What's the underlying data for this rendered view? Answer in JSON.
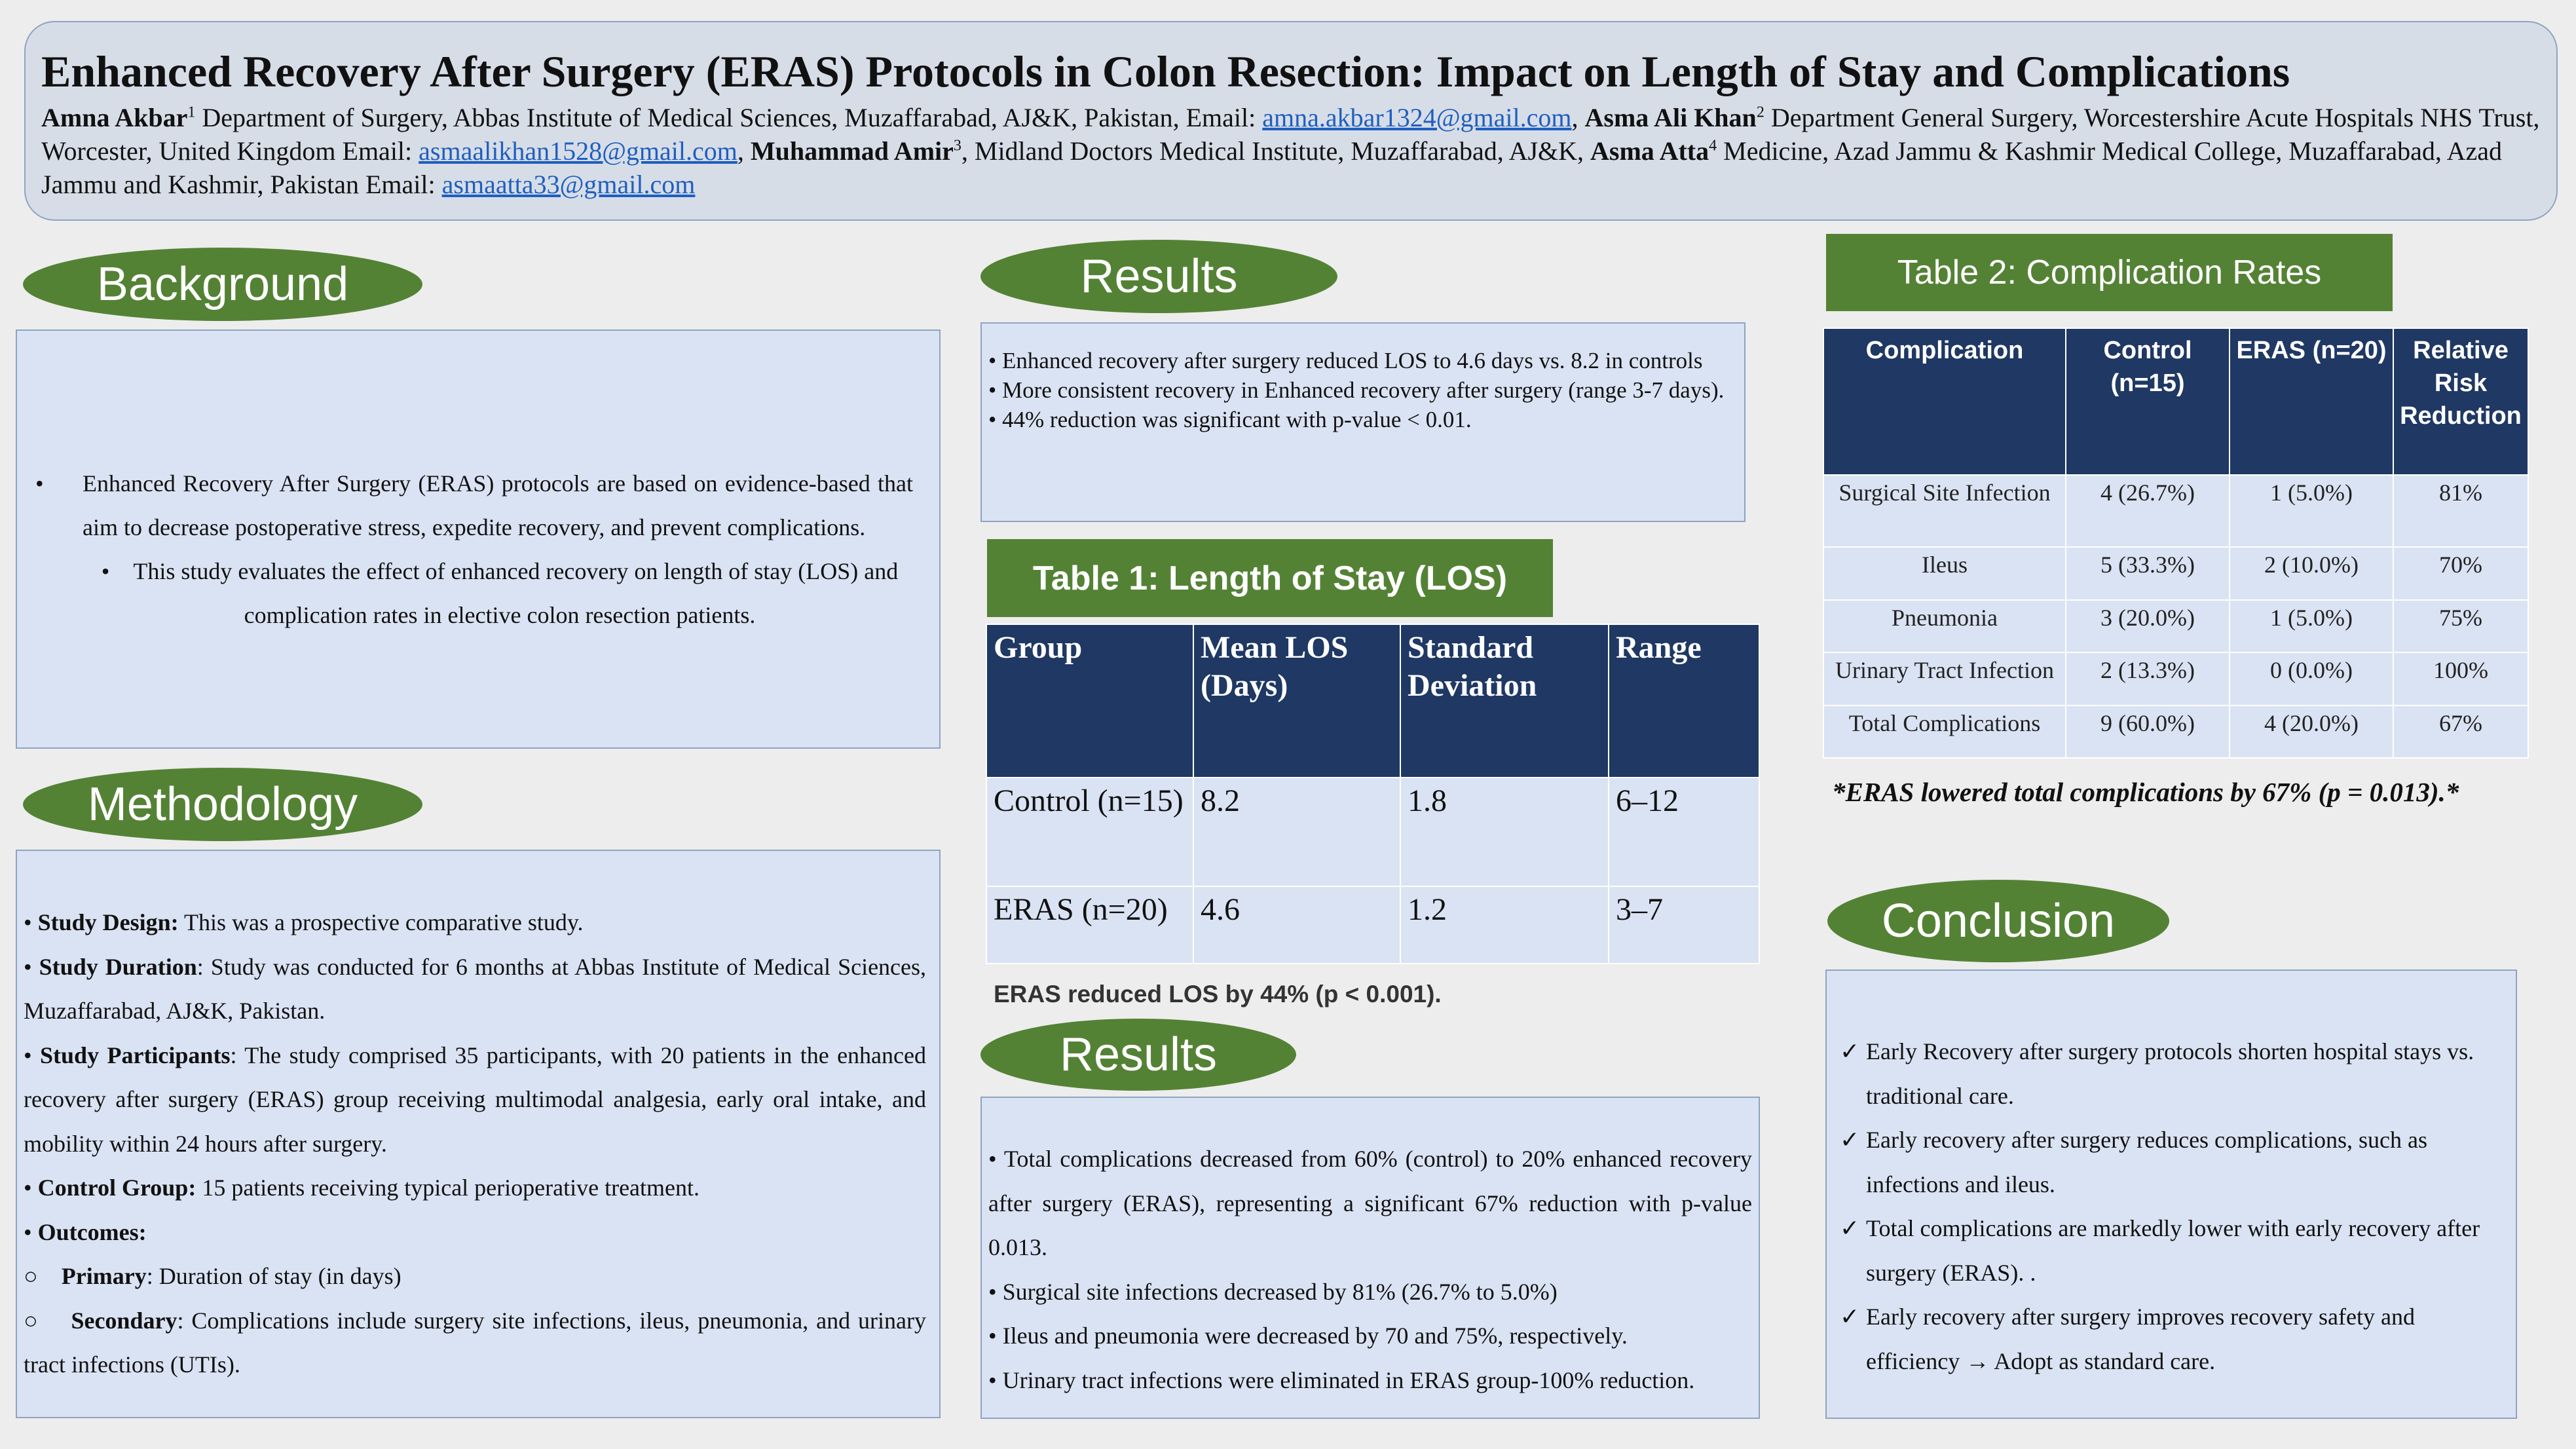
{
  "header": {
    "title": "Enhanced Recovery After Surgery (ERAS) Protocols in Colon Resection: Impact on Length of Stay and Complications",
    "a1_name": "Amna Akbar",
    "a1_sup": "1",
    "a1_affil": " Department of Surgery, Abbas Institute of Medical Sciences, Muzaffarabad, AJ&K, Pakistan, Email: ",
    "a1_email": "amna.akbar1324@gmail.com",
    "a2_name": "Asma Ali Khan",
    "a2_sup": "2",
    "a2_affil": " Department General Surgery, Worcestershire Acute Hospitals NHS Trust, Worcester, United Kingdom Email: ",
    "a2_email": "asmaalikhan1528@gmail.com",
    "a3_name": "Muhammad Amir",
    "a3_sup": "3",
    "a3_affil": ", Midland Doctors Medical Institute, Muzaffarabad,  AJ&K",
    "a4_name": "Asma Atta",
    "a4_sup": "4",
    "a4_affil": " Medicine, Azad Jammu & Kashmir Medical College, Muzaffarabad, Azad Jammu and Kashmir, Pakistan Email: ",
    "a4_email": "asmaatta33@gmail.com"
  },
  "background": {
    "heading": "Background",
    "bullet": "•",
    "items": [
      "Enhanced Recovery After Surgery (ERAS) protocols are based on evidence-based that aim to decrease postoperative stress, expedite recovery, and prevent complications.",
      "This study evaluates the effect of enhanced recovery on length of stay (LOS) and complication rates in elective colon resection patients."
    ]
  },
  "methodology": {
    "heading": "Methodology",
    "bullet": "•",
    "circle": "○",
    "design_label": "Study Design:",
    "design_text": " This was a prospective comparative study.",
    "duration_label": "Study Duration",
    "duration_text": ": Study was conducted for 6 months at Abbas Institute of Medical Sciences, Muzaffarabad, AJ&K, Pakistan.",
    "participants_label": "Study Participants",
    "participants_text": ": The study comprised 35 participants, with 20 patients in the enhanced recovery after surgery (ERAS) group receiving multimodal analgesia, early oral intake, and mobility within 24 hours after surgery.",
    "control_label": "Control Group:",
    "control_text": " 15 patients receiving typical perioperative treatment.",
    "outcomes_label": "Outcomes:",
    "primary_label": "Primary",
    "primary_text": ": Duration of stay (in days)",
    "secondary_label": "Secondary",
    "secondary_text": ": Complications include surgery site infections, ileus, pneumonia, and urinary tract infections (UTIs)."
  },
  "results1": {
    "heading": "Results",
    "items": [
      "• Enhanced recovery after surgery reduced LOS to 4.6 days vs. 8.2 in controls",
      "• More consistent recovery in Enhanced recovery after surgery (range 3-7 days).",
      "• 44% reduction was significant with p-value < 0.01."
    ]
  },
  "table1": {
    "title": "Table 1: Length of Stay (LOS)",
    "headers": [
      "Group",
      "Mean LOS (Days)",
      "Standard Deviation",
      "Range"
    ],
    "rows": [
      [
        "Control (n=15)",
        "8.2",
        "1.8",
        "6–12"
      ],
      [
        "ERAS (n=20)",
        "4.6",
        "1.2",
        "3–7"
      ]
    ],
    "note": "ERAS reduced LOS by 44% (p < 0.001)."
  },
  "results2": {
    "heading": "Results",
    "items": [
      "• Total complications decreased from 60% (control) to 20% enhanced recovery after surgery (ERAS), representing a significant 67% reduction with p-value 0.013.",
      "• Surgical site infections decreased by 81% (26.7% to 5.0%)",
      "• Ileus and pneumonia were decreased by 70 and 75%, respectively.",
      "• Urinary tract infections were eliminated in ERAS group-100% reduction."
    ]
  },
  "table2": {
    "title": "Table 2: Complication Rates",
    "headers": [
      "Complication",
      "Control (n=15)",
      "ERAS (n=20)",
      "Relative Risk Reduction"
    ],
    "rows": [
      [
        "Surgical Site Infection",
        "4 (26.7%)",
        "1 (5.0%)",
        "81%"
      ],
      [
        "Ileus",
        "5 (33.3%)",
        "2 (10.0%)",
        "70%"
      ],
      [
        "Pneumonia",
        "3 (20.0%)",
        "1 (5.0%)",
        "75%"
      ],
      [
        "Urinary Tract Infection",
        "2 (13.3%)",
        "0 (0.0%)",
        "100%"
      ],
      [
        "Total Complications",
        "9 (60.0%)",
        "4 (20.0%)",
        "67%"
      ]
    ],
    "note": "*ERAS lowered total complications by 67% (p = 0.013).*"
  },
  "conclusion": {
    "heading": "Conclusion",
    "check": "✓",
    "items": [
      "Early Recovery after surgery protocols shorten hospital stays vs. traditional care.",
      "Early recovery after surgery reduces complications, such as infections and ileus.",
      "Total complications are markedly lower with early recovery after surgery (ERAS). .",
      "Early recovery after surgery improves recovery safety and efficiency → Adopt as standard care."
    ]
  }
}
